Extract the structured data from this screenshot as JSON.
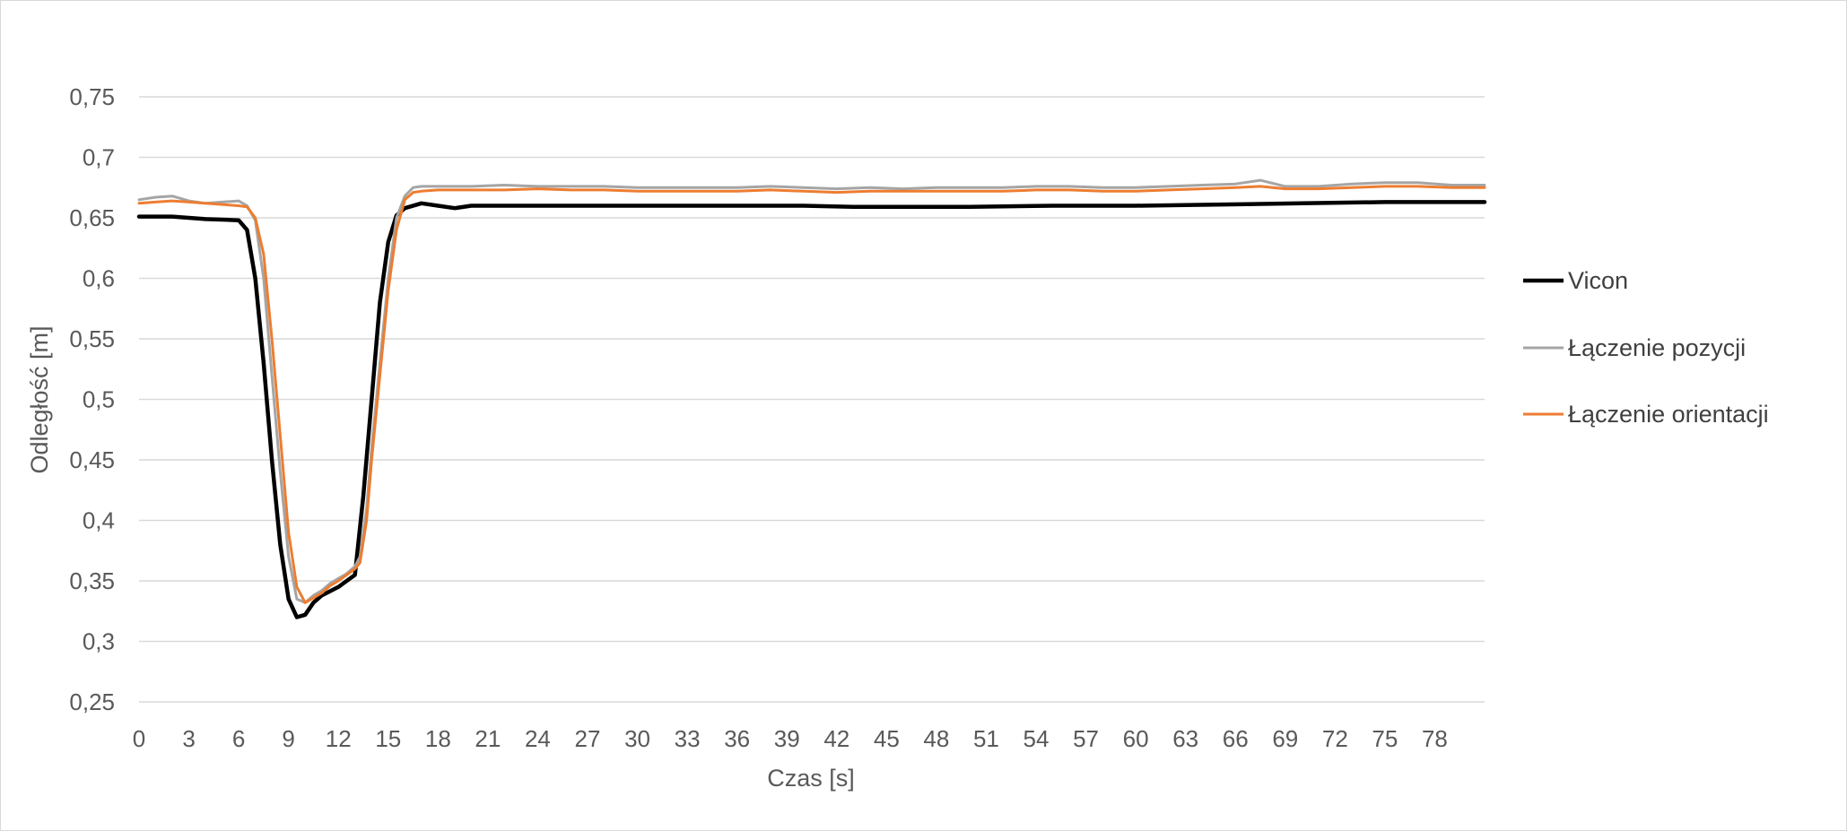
{
  "chart_data": {
    "type": "line",
    "title": "",
    "xlabel": "Czas [s]",
    "ylabel": "Odległość [m]",
    "xlim": [
      0,
      81
    ],
    "ylim": [
      0.25,
      0.75
    ],
    "y_ticks": [
      0.25,
      0.3,
      0.35,
      0.4,
      0.45,
      0.5,
      0.55,
      0.6,
      0.65,
      0.7,
      0.75
    ],
    "y_tick_labels": [
      "0,25",
      "0,3",
      "0,35",
      "0,4",
      "0,45",
      "0,5",
      "0,55",
      "0,6",
      "0,65",
      "0,7",
      "0,75"
    ],
    "x_ticks": [
      0,
      3,
      6,
      9,
      12,
      15,
      18,
      21,
      24,
      27,
      30,
      33,
      36,
      39,
      42,
      45,
      48,
      51,
      54,
      57,
      60,
      63,
      66,
      69,
      72,
      75,
      78
    ],
    "x_tick_labels": [
      "0",
      "3",
      "6",
      "9",
      "12",
      "15",
      "18",
      "21",
      "24",
      "27",
      "30",
      "33",
      "36",
      "39",
      "42",
      "45",
      "48",
      "51",
      "54",
      "57",
      "60",
      "63",
      "66",
      "69",
      "72",
      "75",
      "78"
    ],
    "grid": true,
    "legend_position": "right",
    "series": [
      {
        "name": "Vicon",
        "color": "#000000",
        "x": [
          0,
          2,
          4,
          6,
          6.5,
          7,
          7.5,
          8,
          8.5,
          9,
          9.5,
          10,
          10.5,
          11,
          12,
          13,
          13.5,
          14,
          14.5,
          15,
          15.5,
          16,
          17,
          18,
          19,
          20,
          30,
          40,
          43,
          50,
          55,
          60,
          70,
          75,
          81
        ],
        "y": [
          0.651,
          0.651,
          0.649,
          0.648,
          0.64,
          0.6,
          0.53,
          0.45,
          0.38,
          0.335,
          0.32,
          0.322,
          0.332,
          0.338,
          0.345,
          0.355,
          0.42,
          0.5,
          0.58,
          0.63,
          0.652,
          0.658,
          0.662,
          0.66,
          0.658,
          0.66,
          0.66,
          0.66,
          0.659,
          0.659,
          0.66,
          0.66,
          0.662,
          0.663,
          0.663
        ]
      },
      {
        "name": "Łączenie pozycji",
        "color": "#a5a5a5",
        "x": [
          0,
          1,
          2,
          3,
          4,
          5,
          6,
          6.5,
          7,
          7.5,
          8,
          8.5,
          9,
          9.5,
          10,
          10.5,
          11,
          11.5,
          12,
          12.5,
          13,
          13.3,
          13.7,
          14,
          14.5,
          15,
          15.5,
          16,
          16.5,
          17,
          18,
          20,
          22,
          24,
          26,
          28,
          30,
          32,
          34,
          36,
          38,
          40,
          42,
          44,
          46,
          48,
          50,
          52,
          54,
          56,
          58,
          60,
          62,
          64,
          66,
          67.5,
          69,
          71,
          73,
          75,
          77,
          79,
          81
        ],
        "y": [
          0.665,
          0.667,
          0.668,
          0.664,
          0.662,
          0.663,
          0.664,
          0.66,
          0.648,
          0.6,
          0.52,
          0.44,
          0.37,
          0.335,
          0.332,
          0.338,
          0.342,
          0.348,
          0.352,
          0.356,
          0.362,
          0.37,
          0.41,
          0.46,
          0.53,
          0.6,
          0.65,
          0.668,
          0.675,
          0.676,
          0.676,
          0.676,
          0.677,
          0.676,
          0.676,
          0.676,
          0.675,
          0.675,
          0.675,
          0.675,
          0.676,
          0.675,
          0.674,
          0.675,
          0.674,
          0.675,
          0.675,
          0.675,
          0.676,
          0.676,
          0.675,
          0.675,
          0.676,
          0.677,
          0.678,
          0.681,
          0.676,
          0.676,
          0.678,
          0.679,
          0.679,
          0.677,
          0.677
        ]
      },
      {
        "name": "Łączenie orientacji",
        "color": "#ed7d31",
        "x": [
          0,
          1,
          2,
          3,
          4,
          5,
          6,
          6.5,
          7,
          7.5,
          8,
          8.5,
          9,
          9.5,
          10,
          10.5,
          11,
          11.5,
          12,
          12.5,
          13,
          13.3,
          13.7,
          14,
          14.5,
          15,
          15.5,
          16,
          16.5,
          17,
          18,
          20,
          22,
          24,
          26,
          28,
          30,
          32,
          34,
          36,
          38,
          40,
          42,
          44,
          46,
          48,
          50,
          52,
          54,
          56,
          58,
          60,
          62,
          64,
          66,
          67.5,
          69,
          71,
          73,
          75,
          77,
          79,
          81
        ],
        "y": [
          0.662,
          0.663,
          0.664,
          0.663,
          0.662,
          0.661,
          0.66,
          0.659,
          0.65,
          0.62,
          0.55,
          0.47,
          0.39,
          0.345,
          0.332,
          0.336,
          0.34,
          0.346,
          0.35,
          0.355,
          0.36,
          0.365,
          0.4,
          0.45,
          0.52,
          0.59,
          0.64,
          0.665,
          0.671,
          0.672,
          0.673,
          0.673,
          0.673,
          0.674,
          0.673,
          0.673,
          0.672,
          0.672,
          0.672,
          0.672,
          0.673,
          0.672,
          0.671,
          0.672,
          0.672,
          0.672,
          0.672,
          0.672,
          0.673,
          0.673,
          0.672,
          0.672,
          0.673,
          0.674,
          0.675,
          0.676,
          0.674,
          0.674,
          0.675,
          0.676,
          0.676,
          0.675,
          0.675
        ]
      }
    ]
  }
}
